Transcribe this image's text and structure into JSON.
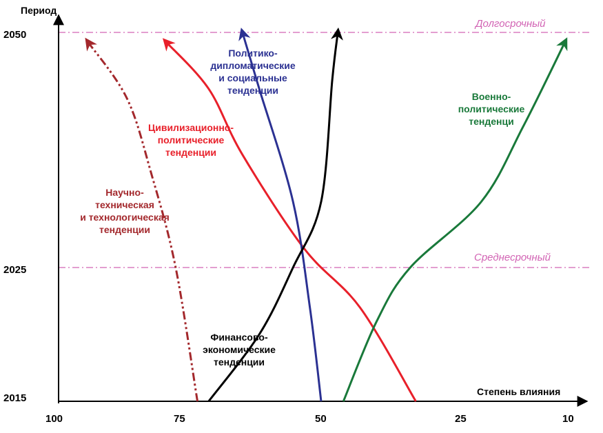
{
  "chart_data": {
    "type": "line",
    "title": "",
    "ylabel": "Период",
    "xlabel": "Степень влияния",
    "x_ticks": [
      "100",
      "75",
      "50",
      "25",
      "10"
    ],
    "y_ticks": [
      "2050",
      "2025",
      "2015"
    ],
    "reference_lines": [
      {
        "label": "Долгосрочный",
        "y": 2050,
        "color": "#d264b4"
      },
      {
        "label": "Среднесрочный",
        "y": 2025,
        "color": "#d264b4"
      }
    ],
    "series": [
      {
        "name": "Научно-техническая и технологическая тенденции",
        "label_lines": [
          "Научно-",
          "техническая",
          "и технологическая",
          "тенденции"
        ],
        "color": "#a3282c",
        "style": "dash-dot-dot",
        "points": [
          [
            72,
            2015
          ],
          [
            76,
            2025
          ],
          [
            81,
            2035
          ],
          [
            86,
            2043
          ],
          [
            94,
            2049
          ]
        ]
      },
      {
        "name": "Цивилизационно-политические тенденции",
        "label_lines": [
          "Цивилизационно-",
          "политические",
          "тенденции"
        ],
        "color": "#e8202a",
        "style": "solid",
        "points": [
          [
            33,
            2015
          ],
          [
            43,
            2022
          ],
          [
            53,
            2027
          ],
          [
            64,
            2037
          ],
          [
            70,
            2044
          ],
          [
            78,
            2049
          ]
        ]
      },
      {
        "name": "Политико-дипломатические и социальные тенденции",
        "label_lines": [
          "Политико-",
          "дипломатические",
          "и социальные",
          "тенденции"
        ],
        "color": "#2b3192",
        "style": "solid",
        "points": [
          [
            50,
            2015
          ],
          [
            52,
            2022
          ],
          [
            55,
            2032
          ],
          [
            61,
            2044
          ],
          [
            64,
            2050
          ]
        ]
      },
      {
        "name": "Финансово-экономические тенденции",
        "label_lines": [
          "Финансово-",
          "экономические",
          "тенденции"
        ],
        "color": "#000000",
        "style": "solid",
        "points": [
          [
            70,
            2015
          ],
          [
            61,
            2020
          ],
          [
            55,
            2025
          ],
          [
            50,
            2032
          ],
          [
            48,
            2045
          ],
          [
            47,
            2050
          ]
        ]
      },
      {
        "name": "Военно-политические тенденции",
        "label_lines": [
          "Военно-",
          "политические",
          "тенденци"
        ],
        "color": "#19793a",
        "style": "solid",
        "points": [
          [
            46,
            2015
          ],
          [
            40,
            2021
          ],
          [
            34,
            2025
          ],
          [
            22,
            2032
          ],
          [
            16,
            2040
          ],
          [
            10,
            2049
          ]
        ]
      }
    ]
  }
}
